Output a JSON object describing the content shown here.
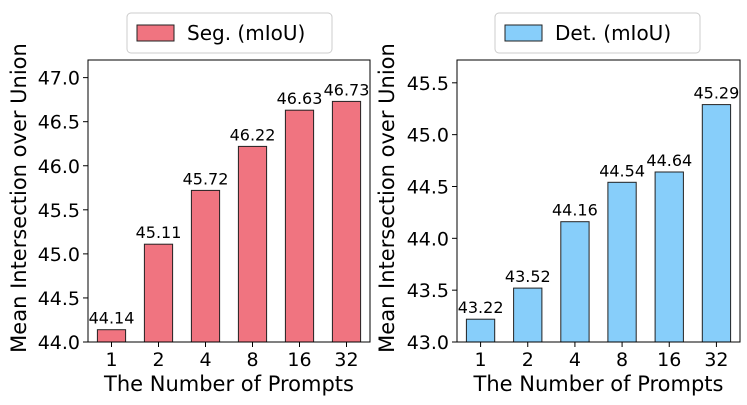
{
  "chart_data": [
    {
      "type": "bar",
      "categories": [
        "1",
        "2",
        "4",
        "8",
        "16",
        "32"
      ],
      "series": [
        {
          "name": "Seg. (mIoU)",
          "values": [
            44.14,
            45.11,
            45.72,
            46.22,
            46.63,
            46.73
          ]
        }
      ],
      "value_labels": [
        "44.14",
        "45.11",
        "45.72",
        "46.22",
        "46.63",
        "46.73"
      ],
      "xlabel": "The Number of Prompts",
      "ylabel": "Mean Intersection over Union",
      "ylim": [
        44.0,
        47.2
      ],
      "yticks": [
        44.0,
        44.5,
        45.0,
        45.5,
        46.0,
        46.5,
        47.0
      ],
      "ytick_labels": [
        "44.0",
        "44.5",
        "45.0",
        "45.5",
        "46.0",
        "46.5",
        "47.0"
      ],
      "legend": "top-center",
      "grid": false,
      "color": "#f07480"
    },
    {
      "type": "bar",
      "categories": [
        "1",
        "2",
        "4",
        "8",
        "16",
        "32"
      ],
      "series": [
        {
          "name": "Det. (mIoU)",
          "values": [
            43.22,
            43.52,
            44.16,
            44.54,
            44.64,
            45.29
          ]
        }
      ],
      "value_labels": [
        "43.22",
        "43.52",
        "44.16",
        "44.54",
        "44.64",
        "45.29"
      ],
      "xlabel": "The Number of Prompts",
      "ylabel": "Mean Intersection over Union",
      "ylim": [
        43.0,
        45.72
      ],
      "yticks": [
        43.0,
        43.5,
        44.0,
        44.5,
        45.0,
        45.5
      ],
      "ytick_labels": [
        "43.0",
        "43.5",
        "44.0",
        "44.5",
        "45.0",
        "45.5"
      ],
      "legend": "top-center",
      "grid": false,
      "color": "#87cefa"
    }
  ]
}
